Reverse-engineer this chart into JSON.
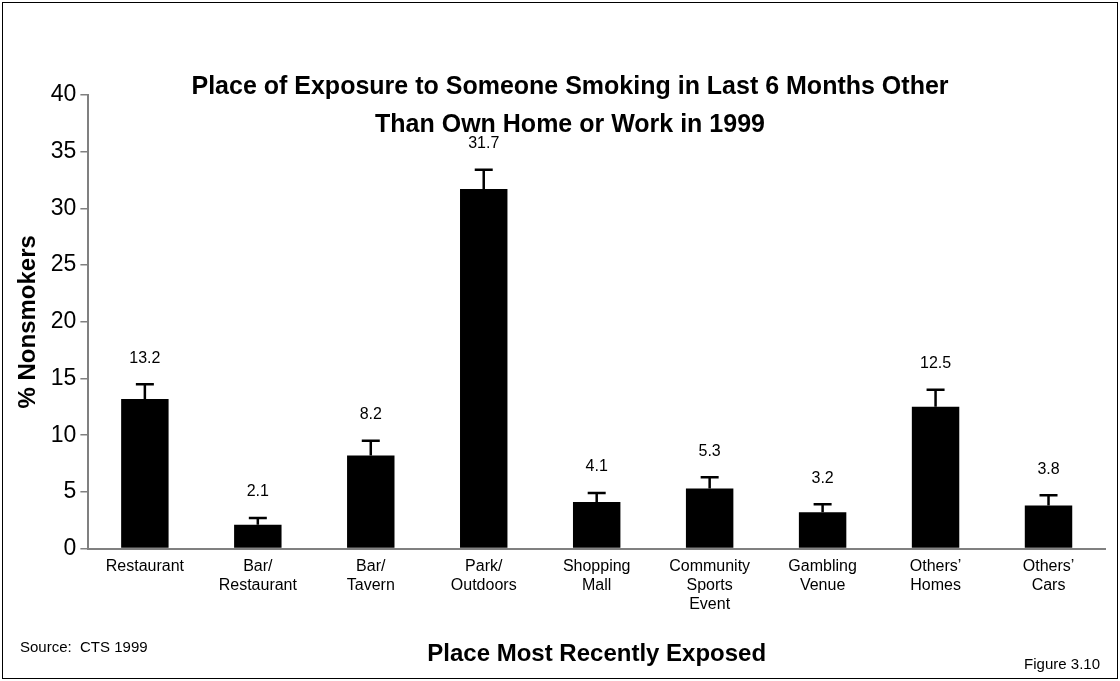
{
  "chart_data": {
    "type": "bar",
    "title": "Place of Exposure to Someone Smoking in Last 6 Months Other Than Own Home or Work in 1999",
    "xlabel": "Place Most Recently Exposed",
    "ylabel": "% Nonsmokers",
    "categories": [
      "Restaurant",
      "Bar/ Restaurant",
      "Bar/ Tavern",
      "Park/ Outdoors",
      "Shopping Mall",
      "Community Sports Event",
      "Gambling Venue",
      "Others’ Homes",
      "Others’ Cars"
    ],
    "values": [
      13.2,
      2.1,
      8.2,
      31.7,
      4.1,
      5.3,
      3.2,
      12.5,
      3.8
    ],
    "errors": [
      [
        13.2,
        14.5
      ],
      [
        2.1,
        2.7
      ],
      [
        8.2,
        9.5
      ],
      [
        31.7,
        33.4
      ],
      [
        4.1,
        4.9
      ],
      [
        5.3,
        6.3
      ],
      [
        3.2,
        3.9
      ],
      [
        12.5,
        14.0
      ],
      [
        3.8,
        4.7
      ]
    ],
    "color": "#000000",
    "ylim": [
      0,
      40
    ],
    "yticks": [
      0,
      5,
      10,
      15,
      20,
      25,
      30,
      35,
      40
    ],
    "grid": false,
    "legend": false,
    "data_labels": true,
    "annotations": [
      "Source:  CTS 1999",
      "Figure 3.10"
    ]
  }
}
